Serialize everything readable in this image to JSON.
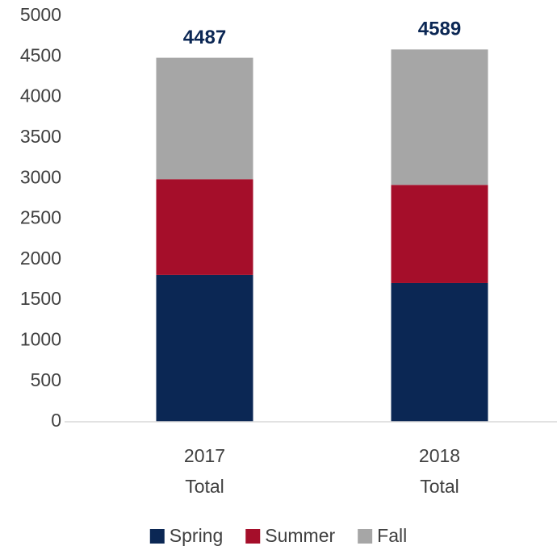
{
  "chart_data": {
    "type": "stacked_bar",
    "categories": [
      "2017 Total",
      "2018 Total"
    ],
    "series": [
      {
        "name": "Spring",
        "color": "#0b2754",
        "values": [
          1810,
          1710
        ]
      },
      {
        "name": "Summer",
        "color": "#a50e2a",
        "values": [
          1180,
          1210
        ]
      },
      {
        "name": "Fall",
        "color": "#a6a6a6",
        "values": [
          1497,
          1669
        ]
      }
    ],
    "totals": [
      4487,
      4589
    ],
    "ylim": [
      0,
      5000
    ],
    "yticks": [
      0,
      500,
      1000,
      1500,
      2000,
      2500,
      3000,
      3500,
      4000,
      4500,
      5000
    ],
    "grid": false,
    "legend": "bottom"
  }
}
